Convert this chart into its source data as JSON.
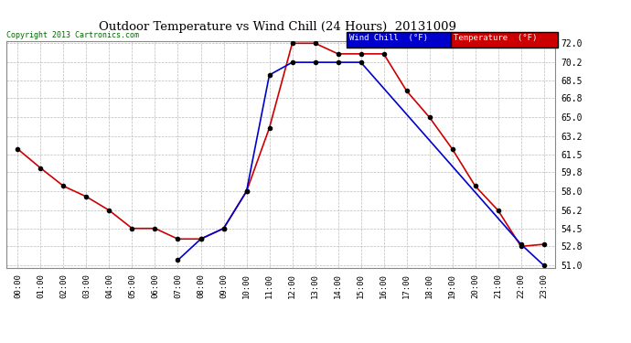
{
  "title": "Outdoor Temperature vs Wind Chill (24 Hours)  20131009",
  "copyright": "Copyright 2013 Cartronics.com",
  "background_color": "#ffffff",
  "plot_bg_color": "#ffffff",
  "grid_color": "#bbbbbb",
  "x_labels": [
    "00:00",
    "01:00",
    "02:00",
    "03:00",
    "04:00",
    "05:00",
    "06:00",
    "07:00",
    "08:00",
    "09:00",
    "10:00",
    "11:00",
    "12:00",
    "13:00",
    "14:00",
    "15:00",
    "16:00",
    "17:00",
    "18:00",
    "19:00",
    "20:00",
    "21:00",
    "22:00",
    "23:00"
  ],
  "temperature": [
    62.0,
    60.2,
    58.5,
    57.5,
    56.2,
    54.5,
    54.5,
    53.5,
    53.5,
    54.5,
    58.0,
    64.0,
    72.0,
    72.0,
    71.0,
    71.0,
    71.0,
    67.5,
    65.0,
    62.0,
    58.5,
    56.2,
    52.8,
    53.0
  ],
  "wind_chill": [
    null,
    null,
    null,
    null,
    null,
    null,
    null,
    51.5,
    53.5,
    54.5,
    58.0,
    69.0,
    70.2,
    70.2,
    70.2,
    70.2,
    null,
    null,
    null,
    null,
    null,
    null,
    53.0,
    51.0
  ],
  "temp_color": "#cc0000",
  "wind_color": "#0000cc",
  "ylim_min": 51.0,
  "ylim_max": 72.0,
  "yticks": [
    51.0,
    52.8,
    54.5,
    56.2,
    58.0,
    59.8,
    61.5,
    63.2,
    65.0,
    66.8,
    68.5,
    70.2,
    72.0
  ],
  "legend_wind_bg": "#0000cc",
  "legend_temp_bg": "#cc0000",
  "marker": "o",
  "marker_size": 3,
  "linewidth": 1.2
}
